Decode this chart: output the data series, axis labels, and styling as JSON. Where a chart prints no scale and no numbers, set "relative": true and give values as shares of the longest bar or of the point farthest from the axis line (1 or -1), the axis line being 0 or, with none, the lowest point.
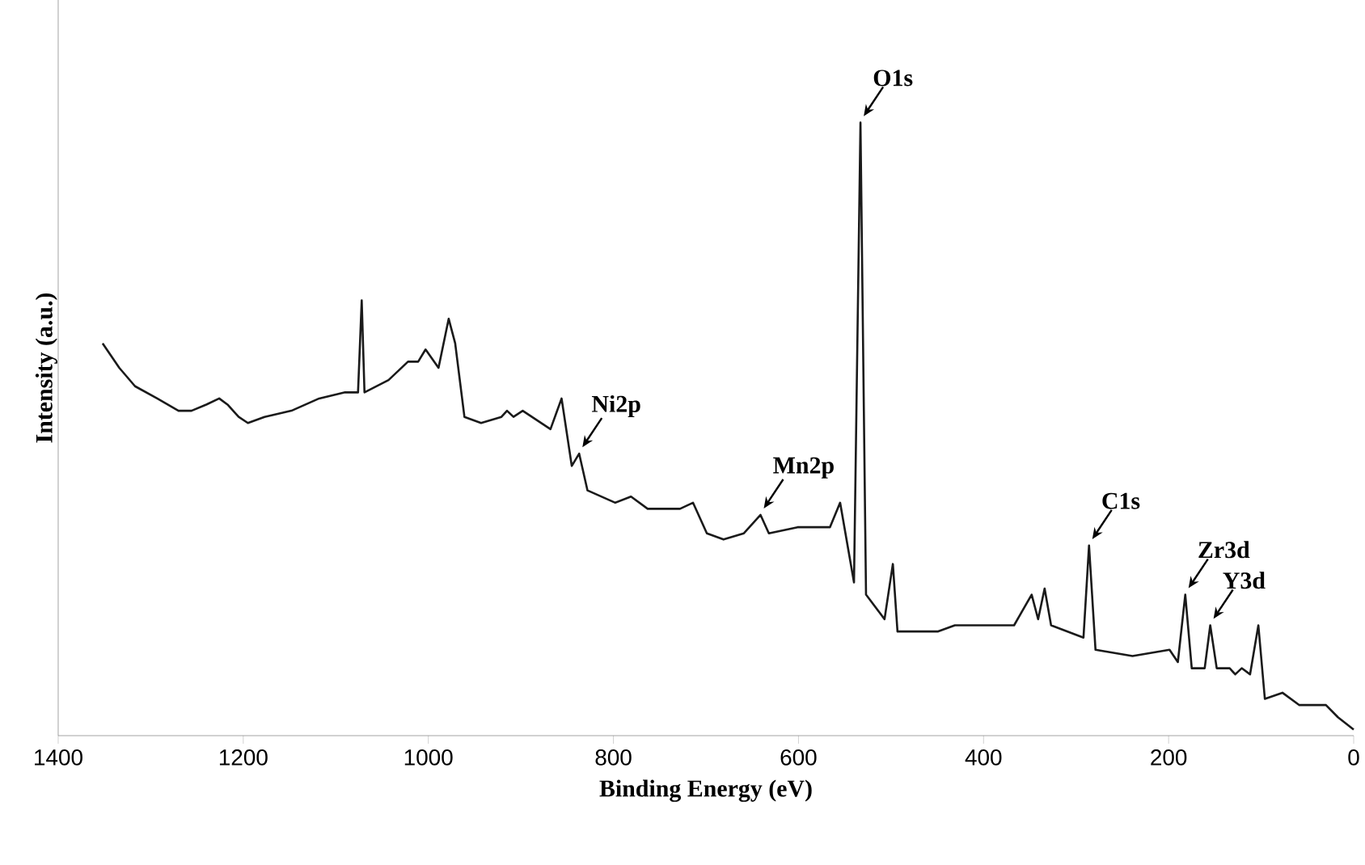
{
  "chart_data": {
    "type": "line",
    "xlabel": "Binding Energy (eV)",
    "ylabel": "Intensity (a.u.)",
    "relative": true,
    "xlim": [
      1400,
      0
    ],
    "xticks": [
      1400,
      1200,
      1000,
      800,
      600,
      400,
      200,
      0
    ],
    "grid": false,
    "marker": "none",
    "line_style": "solid",
    "series": [
      {
        "color": "#1a1a1a",
        "x": [
          1352,
          1334,
          1317,
          1293,
          1270,
          1256,
          1240,
          1226,
          1217,
          1205,
          1195,
          1177,
          1148,
          1118,
          1090,
          1076,
          1072,
          1069,
          1043,
          1022,
          1011,
          1003,
          989,
          978,
          971,
          961,
          943,
          921,
          915,
          908,
          898,
          868,
          856,
          845,
          837,
          828,
          798,
          781,
          763,
          728,
          714,
          699,
          681,
          659,
          641,
          632,
          601,
          566,
          555,
          540,
          533,
          527,
          507,
          498,
          493,
          449,
          431,
          367,
          348,
          341,
          334,
          327,
          292,
          286,
          279,
          239,
          199,
          190,
          182,
          175,
          161,
          155,
          148,
          134,
          128,
          121,
          112,
          103,
          96,
          77,
          59,
          30,
          17,
          0
        ],
        "values": [
          0.64,
          0.6,
          0.57,
          0.55,
          0.53,
          0.53,
          0.54,
          0.55,
          0.54,
          0.52,
          0.51,
          0.52,
          0.53,
          0.55,
          0.56,
          0.56,
          0.71,
          0.56,
          0.58,
          0.61,
          0.61,
          0.63,
          0.6,
          0.68,
          0.64,
          0.52,
          0.51,
          0.52,
          0.53,
          0.52,
          0.53,
          0.5,
          0.55,
          0.44,
          0.46,
          0.4,
          0.38,
          0.39,
          0.37,
          0.37,
          0.38,
          0.33,
          0.32,
          0.33,
          0.36,
          0.33,
          0.34,
          0.34,
          0.38,
          0.25,
          1.0,
          0.23,
          0.19,
          0.28,
          0.17,
          0.17,
          0.18,
          0.18,
          0.23,
          0.19,
          0.24,
          0.18,
          0.16,
          0.31,
          0.14,
          0.13,
          0.14,
          0.12,
          0.23,
          0.11,
          0.11,
          0.18,
          0.11,
          0.11,
          0.1,
          0.11,
          0.1,
          0.18,
          0.06,
          0.07,
          0.05,
          0.05,
          0.03,
          0.01
        ]
      }
    ],
    "annotations": [
      {
        "text": "O1s",
        "x": 533,
        "y": 1.0
      },
      {
        "text": "Ni2p",
        "x": 837,
        "y": 0.46
      },
      {
        "text": "Mn2p",
        "x": 641,
        "y": 0.36
      },
      {
        "text": "C1s",
        "x": 286,
        "y": 0.31
      },
      {
        "text": "Zr3d",
        "x": 182,
        "y": 0.23
      },
      {
        "text": "Y3d",
        "x": 155,
        "y": 0.18
      }
    ]
  }
}
